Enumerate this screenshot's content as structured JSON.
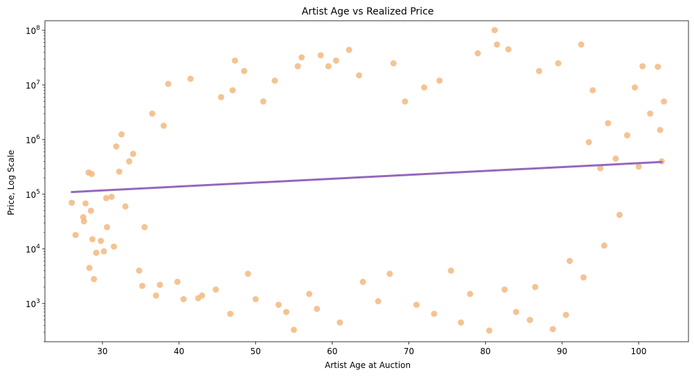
{
  "chart_data": {
    "type": "scatter",
    "title": "Artist Age vs Realized Price",
    "xlabel": "Artist Age at Auction",
    "ylabel": "Price, Log Scale",
    "xlim": [
      22.5,
      106.5
    ],
    "ylim": [
      200,
      150000000
    ],
    "y_scale": "log",
    "grid": false,
    "legend": "none",
    "x_ticks": [
      30,
      40,
      50,
      60,
      70,
      80,
      90,
      100
    ],
    "y_ticks": [
      {
        "value": 1000,
        "base": "10",
        "exp": "3"
      },
      {
        "value": 10000,
        "base": "10",
        "exp": "4"
      },
      {
        "value": 100000,
        "base": "10",
        "exp": "5"
      },
      {
        "value": 1000000,
        "base": "10",
        "exp": "6"
      },
      {
        "value": 10000000,
        "base": "10",
        "exp": "7"
      },
      {
        "value": 100000000,
        "base": "10",
        "exp": "8"
      }
    ],
    "point_color": "#f2b880",
    "line_color": "#9467bd",
    "trend_line": {
      "x": [
        26,
        103
      ],
      "y": [
        110000,
        390000
      ]
    },
    "points": [
      {
        "x": 26,
        "y": 70000
      },
      {
        "x": 26.5,
        "y": 18000
      },
      {
        "x": 27.5,
        "y": 38000
      },
      {
        "x": 27.6,
        "y": 32000
      },
      {
        "x": 27.8,
        "y": 68000
      },
      {
        "x": 28.2,
        "y": 250000
      },
      {
        "x": 28.6,
        "y": 235000
      },
      {
        "x": 28.3,
        "y": 4500
      },
      {
        "x": 28.9,
        "y": 2800
      },
      {
        "x": 28.5,
        "y": 50000
      },
      {
        "x": 28.7,
        "y": 15000
      },
      {
        "x": 29.2,
        "y": 8500
      },
      {
        "x": 29.8,
        "y": 14000
      },
      {
        "x": 30.2,
        "y": 9000
      },
      {
        "x": 30.5,
        "y": 85000
      },
      {
        "x": 30.6,
        "y": 25000
      },
      {
        "x": 31.2,
        "y": 90000
      },
      {
        "x": 31.5,
        "y": 11000
      },
      {
        "x": 31.8,
        "y": 750000
      },
      {
        "x": 32.5,
        "y": 1250000
      },
      {
        "x": 32.2,
        "y": 260000
      },
      {
        "x": 33.0,
        "y": 60000
      },
      {
        "x": 33.5,
        "y": 400000
      },
      {
        "x": 34.0,
        "y": 550000
      },
      {
        "x": 34.8,
        "y": 4000
      },
      {
        "x": 35.2,
        "y": 2100
      },
      {
        "x": 35.5,
        "y": 25000
      },
      {
        "x": 36.5,
        "y": 3000000
      },
      {
        "x": 37.0,
        "y": 1400
      },
      {
        "x": 37.5,
        "y": 2200
      },
      {
        "x": 38.0,
        "y": 1800000
      },
      {
        "x": 38.6,
        "y": 10500000
      },
      {
        "x": 39.8,
        "y": 2500
      },
      {
        "x": 40.6,
        "y": 1200
      },
      {
        "x": 41.5,
        "y": 13000000
      },
      {
        "x": 42.5,
        "y": 1250
      },
      {
        "x": 43.0,
        "y": 1400
      },
      {
        "x": 44.8,
        "y": 1800
      },
      {
        "x": 45.5,
        "y": 6000000
      },
      {
        "x": 46.7,
        "y": 650
      },
      {
        "x": 47.0,
        "y": 8000000
      },
      {
        "x": 47.3,
        "y": 28000000
      },
      {
        "x": 48.5,
        "y": 18000000
      },
      {
        "x": 49.0,
        "y": 3500
      },
      {
        "x": 50.0,
        "y": 1200
      },
      {
        "x": 51.0,
        "y": 5000000
      },
      {
        "x": 52.5,
        "y": 12000000
      },
      {
        "x": 53.0,
        "y": 950
      },
      {
        "x": 54.0,
        "y": 700
      },
      {
        "x": 55.0,
        "y": 330
      },
      {
        "x": 55.5,
        "y": 22000000
      },
      {
        "x": 56.0,
        "y": 32000000
      },
      {
        "x": 57.0,
        "y": 1500
      },
      {
        "x": 58.0,
        "y": 800
      },
      {
        "x": 58.5,
        "y": 35000000
      },
      {
        "x": 59.5,
        "y": 22000000
      },
      {
        "x": 60.5,
        "y": 28000000
      },
      {
        "x": 61.0,
        "y": 450
      },
      {
        "x": 62.2,
        "y": 44000000
      },
      {
        "x": 63.5,
        "y": 15000000
      },
      {
        "x": 64.0,
        "y": 2500
      },
      {
        "x": 66.0,
        "y": 1100
      },
      {
        "x": 67.5,
        "y": 3500
      },
      {
        "x": 68.0,
        "y": 25000000
      },
      {
        "x": 69.5,
        "y": 5000000
      },
      {
        "x": 71.0,
        "y": 950
      },
      {
        "x": 72.0,
        "y": 9000000
      },
      {
        "x": 73.3,
        "y": 650
      },
      {
        "x": 74.0,
        "y": 12000000
      },
      {
        "x": 75.5,
        "y": 4000
      },
      {
        "x": 76.8,
        "y": 450
      },
      {
        "x": 78.0,
        "y": 1500
      },
      {
        "x": 79.0,
        "y": 38000000
      },
      {
        "x": 80.5,
        "y": 320
      },
      {
        "x": 81.2,
        "y": 101000000
      },
      {
        "x": 81.5,
        "y": 55000000
      },
      {
        "x": 82.5,
        "y": 1800
      },
      {
        "x": 83.0,
        "y": 45000000
      },
      {
        "x": 84.0,
        "y": 700
      },
      {
        "x": 85.8,
        "y": 500
      },
      {
        "x": 86.5,
        "y": 2000
      },
      {
        "x": 87.0,
        "y": 18000000
      },
      {
        "x": 88.8,
        "y": 340
      },
      {
        "x": 89.5,
        "y": 25000000
      },
      {
        "x": 90.5,
        "y": 620
      },
      {
        "x": 91.0,
        "y": 6000
      },
      {
        "x": 92.5,
        "y": 55000000
      },
      {
        "x": 92.8,
        "y": 3000
      },
      {
        "x": 93.5,
        "y": 900000
      },
      {
        "x": 94.0,
        "y": 8000000
      },
      {
        "x": 95.0,
        "y": 300000
      },
      {
        "x": 95.5,
        "y": 11500
      },
      {
        "x": 96.0,
        "y": 2000000
      },
      {
        "x": 97.0,
        "y": 450000
      },
      {
        "x": 97.5,
        "y": 42000
      },
      {
        "x": 98.5,
        "y": 1200000
      },
      {
        "x": 99.5,
        "y": 9000000
      },
      {
        "x": 100.0,
        "y": 320000
      },
      {
        "x": 100.5,
        "y": 22000000
      },
      {
        "x": 101.5,
        "y": 3000000
      },
      {
        "x": 102.5,
        "y": 21500000
      },
      {
        "x": 102.8,
        "y": 1500000
      },
      {
        "x": 103.3,
        "y": 5000000
      },
      {
        "x": 103.0,
        "y": 400000
      }
    ]
  }
}
